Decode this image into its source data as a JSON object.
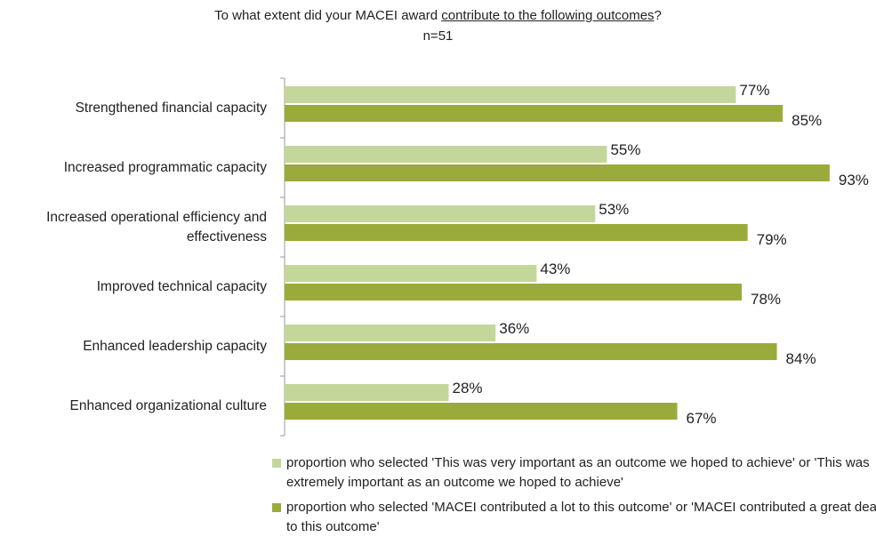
{
  "chart_data": {
    "type": "bar",
    "orientation": "horizontal",
    "title": [
      {
        "text": "To what extent did your MACEI award ",
        "underline": false
      },
      {
        "text": "contribute to the following outcomes",
        "underline": true
      },
      {
        "text": "?",
        "underline": false
      }
    ],
    "subtitle": "n=51",
    "categories": [
      "Strengthened financial capacity",
      "Increased programmatic capacity",
      "Increased operational efficiency and effectiveness",
      "Improved technical capacity",
      "Enhanced leadership capacity",
      "Enhanced organizational culture"
    ],
    "series": [
      {
        "name": "proportion who selected 'This was very important as an outcome we hoped to achieve' or 'This was extremely important as an outcome we hoped to achieve'",
        "color": "#c4d79b",
        "values": [
          77,
          55,
          53,
          43,
          36,
          28
        ],
        "value_labels": [
          "77%",
          "55%",
          "53%",
          "43%",
          "36%",
          "28%"
        ]
      },
      {
        "name": "proportion who selected 'MACEI contributed a lot to this outcome' or 'MACEI contributed a great deal to this outcome'",
        "color": "#9bab3b",
        "values": [
          85,
          93,
          79,
          78,
          84,
          67
        ],
        "value_labels": [
          "85%",
          "93%",
          "79%",
          "78%",
          "84%",
          "67%"
        ]
      }
    ],
    "xlim": [
      0,
      100
    ]
  }
}
